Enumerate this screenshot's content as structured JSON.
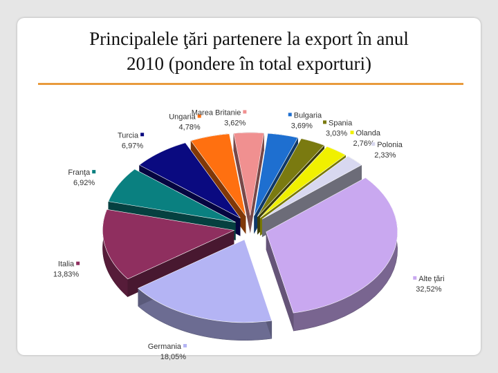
{
  "slide": {
    "title_line1": "Principalele ţări partenere la export în anul",
    "title_line2": "2010 (pondere în total exporturi)"
  },
  "chart_data": {
    "type": "pie",
    "title": "Principalele ţări partenere la export în anul 2010 (pondere în total exporturi)",
    "legend": "labels-beside-slices",
    "slices": [
      {
        "name": "Bulgaria",
        "value": 3.69,
        "label": "3,69%",
        "color": "#1e6fd0"
      },
      {
        "name": "Spania",
        "value": 3.03,
        "label": "3,03%",
        "color": "#7a7a10"
      },
      {
        "name": "Olanda",
        "value": 2.76,
        "label": "2,76%",
        "color": "#f0f000"
      },
      {
        "name": "Polonia",
        "value": 2.33,
        "label": "2,33%",
        "color": "#d8d8f0"
      },
      {
        "name": "Alte ţări",
        "value": 32.52,
        "label": "32,52%",
        "color": "#c9a8f0"
      },
      {
        "name": "Germania",
        "value": 18.05,
        "label": "18,05%",
        "color": "#b4b4f4"
      },
      {
        "name": "Italia",
        "value": 13.83,
        "label": "13,83%",
        "color": "#8f2f5f"
      },
      {
        "name": "Franţa",
        "value": 6.92,
        "label": "6,92%",
        "color": "#0a8080"
      },
      {
        "name": "Turcia",
        "value": 6.97,
        "label": "6,97%",
        "color": "#0a0a80"
      },
      {
        "name": "Ungaria",
        "value": 4.78,
        "label": "4,78%",
        "color": "#ff7010"
      },
      {
        "name": "Marea Britanie",
        "value": 3.62,
        "label": "3,62%",
        "color": "#f09090"
      }
    ]
  }
}
